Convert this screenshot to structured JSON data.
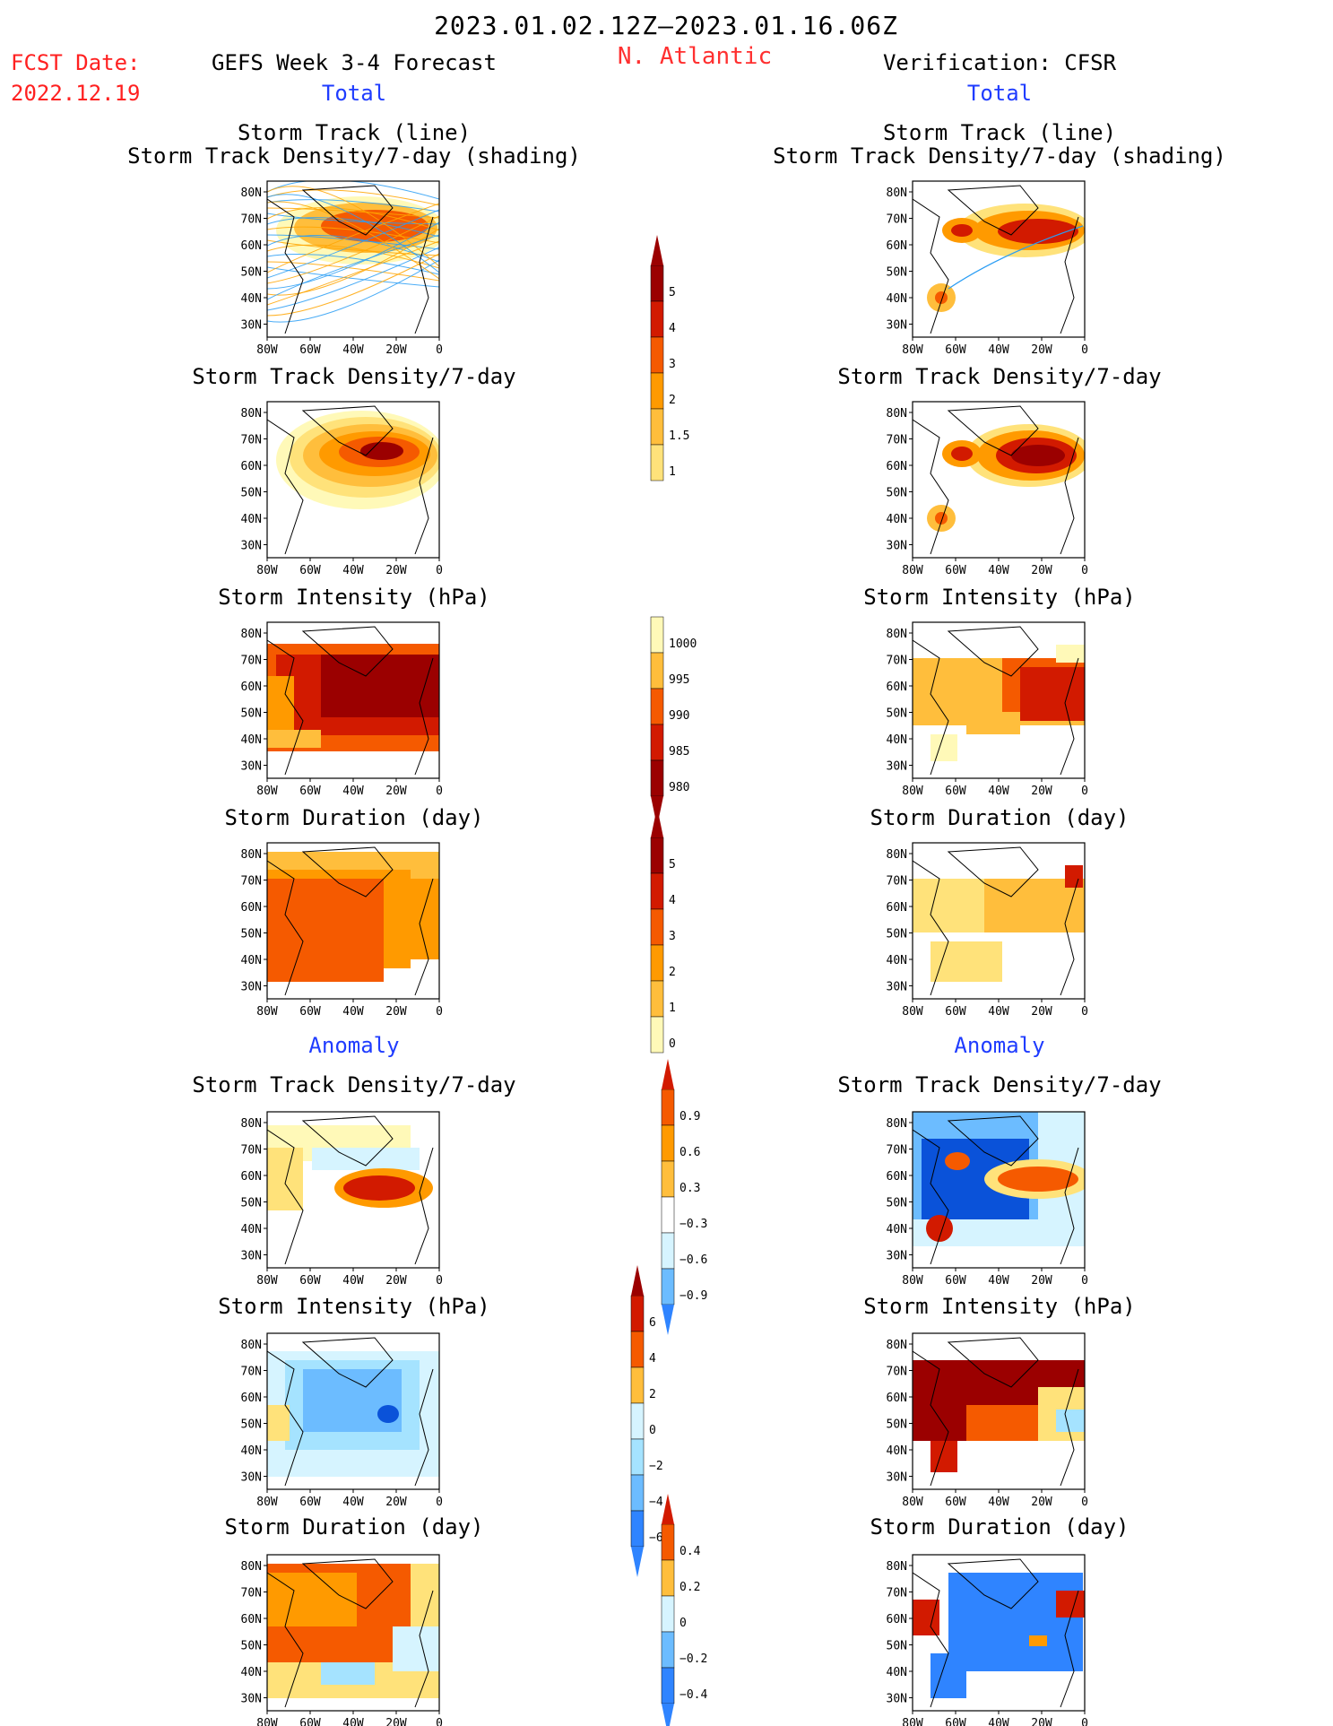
{
  "header": {
    "period": "2023.01.02.12Z—2023.01.16.06Z",
    "fcst_label": "FCST Date:",
    "fcst_date": "2022.12.19",
    "model": "GEFS Week 3-4 Forecast",
    "region": "N. Atlantic",
    "verification": "Verification: CFSR"
  },
  "sections": {
    "total": "Total",
    "anomaly": "Anomaly"
  },
  "panel_titles": {
    "track_line": "Storm Track (line)",
    "track_shading": "Storm Track Density/7-day (shading)",
    "density": "Storm Track Density/7-day",
    "intensity": "Storm Intensity (hPa)",
    "duration": "Storm Duration (day)"
  },
  "axes": {
    "lat_labels": [
      "80N",
      "70N",
      "60N",
      "50N",
      "40N",
      "30N"
    ],
    "lon_labels": [
      "80W",
      "60W",
      "40W",
      "20W",
      "0"
    ]
  },
  "colorbars": {
    "density_total": [
      "5",
      "4",
      "3",
      "2",
      "1.5",
      "1"
    ],
    "intensity_total": [
      "1000",
      "995",
      "990",
      "985",
      "980"
    ],
    "duration_total": [
      "5",
      "4",
      "3",
      "2",
      "1",
      "0"
    ],
    "density_anom": [
      "0.9",
      "0.6",
      "0.3",
      "−0.3",
      "−0.6",
      "−0.9"
    ],
    "intensity_anom": [
      "6",
      "4",
      "2",
      "0",
      "−2",
      "−4",
      "−6"
    ],
    "duration_anom": [
      "0.4",
      "0.2",
      "0",
      "−0.2",
      "−0.4"
    ]
  },
  "colors": {
    "warm": [
      "#fff9b8",
      "#ffe27a",
      "#ffbe3c",
      "#ff9a00",
      "#f55a00",
      "#d21a00",
      "#9b0000"
    ],
    "cool": [
      "#d6f4ff",
      "#a5e3ff",
      "#6cbcff",
      "#2f84ff",
      "#0a52d9"
    ],
    "title_red": "#ff2020",
    "section_blue": "#1f3cff"
  }
}
